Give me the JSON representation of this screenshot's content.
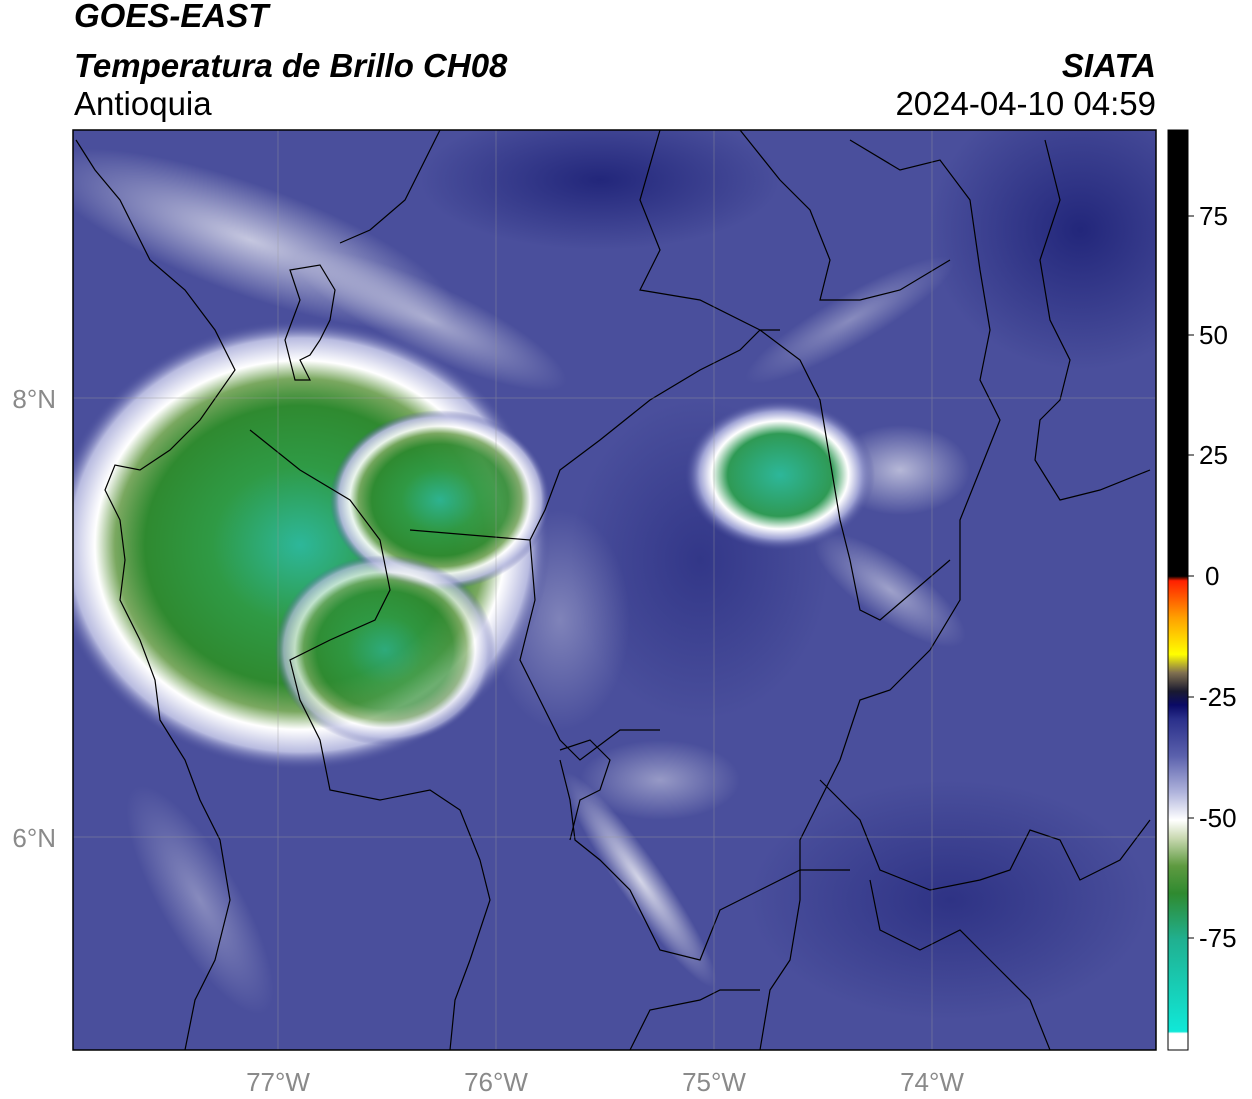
{
  "header": {
    "satellite": "GOES-EAST",
    "product": "Temperatura de Brillo CH08",
    "region": "Antioquia",
    "organization": "SIATA",
    "timestamp": "2024-04-10 04:59"
  },
  "axes": {
    "lon_ticks": [
      "77°W",
      "76°W",
      "75°W",
      "74°W"
    ],
    "lat_ticks": [
      "8°N",
      "6°N"
    ]
  },
  "colorbar": {
    "ticks": [
      "75",
      "50",
      "25",
      "0",
      "-25",
      "-50",
      "-75"
    ]
  },
  "colors": {
    "background_field": "#4a4f9c",
    "dark_field": "#262b7e",
    "cold_cloud": "#2f8a30",
    "cold_core": "#2db79a",
    "border": "#000000"
  }
}
